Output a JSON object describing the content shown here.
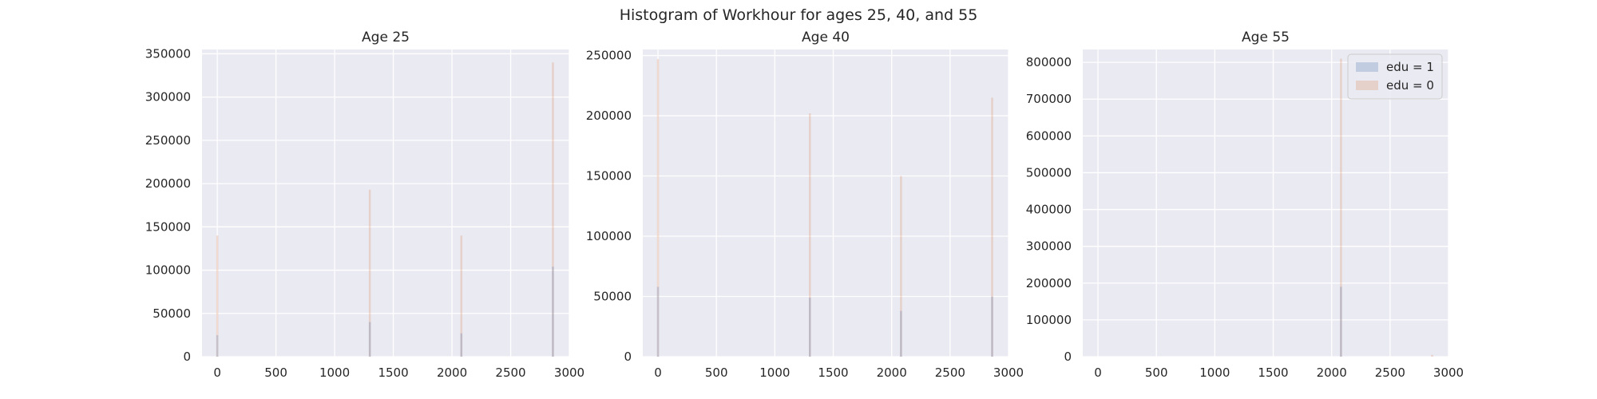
{
  "figure": {
    "title": "Histogram of Workhour for ages 25, 40, and 55",
    "background": "#ffffff",
    "axes_background": "#eaeaf2",
    "grid_color": "#ffffff",
    "text_color": "#262626"
  },
  "chart_data": [
    {
      "type": "bar",
      "title": "Age 25",
      "xlabel": "",
      "ylabel": "",
      "xlim": [
        -130,
        3000
      ],
      "ylim": [
        0,
        355000
      ],
      "xticks": [
        0,
        500,
        1000,
        1500,
        2000,
        2500,
        3000
      ],
      "yticks": [
        0,
        50000,
        100000,
        150000,
        200000,
        250000,
        300000,
        350000
      ],
      "grid": true,
      "series": [
        {
          "name": "edu = 1",
          "color": "#4c72b0",
          "x": [
            0,
            1300,
            2080,
            2860
          ],
          "values": [
            25000,
            40000,
            27000,
            104000
          ]
        },
        {
          "name": "edu = 0",
          "color": "#dd8452",
          "x": [
            0,
            1300,
            2080,
            2860
          ],
          "values": [
            140000,
            193000,
            140000,
            340000
          ]
        }
      ]
    },
    {
      "type": "bar",
      "title": "Age 40",
      "xlabel": "",
      "ylabel": "",
      "xlim": [
        -130,
        3000
      ],
      "ylim": [
        0,
        255000
      ],
      "xticks": [
        0,
        500,
        1000,
        1500,
        2000,
        2500,
        3000
      ],
      "yticks": [
        0,
        50000,
        100000,
        150000,
        200000,
        250000
      ],
      "grid": true,
      "series": [
        {
          "name": "edu = 1",
          "color": "#4c72b0",
          "x": [
            0,
            1300,
            2080,
            2860
          ],
          "values": [
            58000,
            49000,
            38000,
            50000
          ]
        },
        {
          "name": "edu = 0",
          "color": "#dd8452",
          "x": [
            0,
            1300,
            2080,
            2860
          ],
          "values": [
            247000,
            202000,
            150000,
            215000
          ]
        }
      ]
    },
    {
      "type": "bar",
      "title": "Age 55",
      "xlabel": "",
      "ylabel": "",
      "xlim": [
        -130,
        3000
      ],
      "ylim": [
        0,
        835000
      ],
      "xticks": [
        0,
        500,
        1000,
        1500,
        2000,
        2500,
        3000
      ],
      "yticks": [
        0,
        100000,
        200000,
        300000,
        400000,
        500000,
        600000,
        700000,
        800000
      ],
      "grid": true,
      "legend": {
        "position": "top-right",
        "entries": [
          "edu = 1",
          "edu = 0"
        ]
      },
      "series": [
        {
          "name": "edu = 1",
          "color": "#4c72b0",
          "x": [
            0,
            1300,
            2080,
            2860
          ],
          "values": [
            0,
            0,
            190000,
            0
          ]
        },
        {
          "name": "edu = 0",
          "color": "#dd8452",
          "x": [
            0,
            1300,
            2080,
            2860
          ],
          "values": [
            0,
            0,
            810000,
            5000
          ]
        }
      ]
    }
  ]
}
